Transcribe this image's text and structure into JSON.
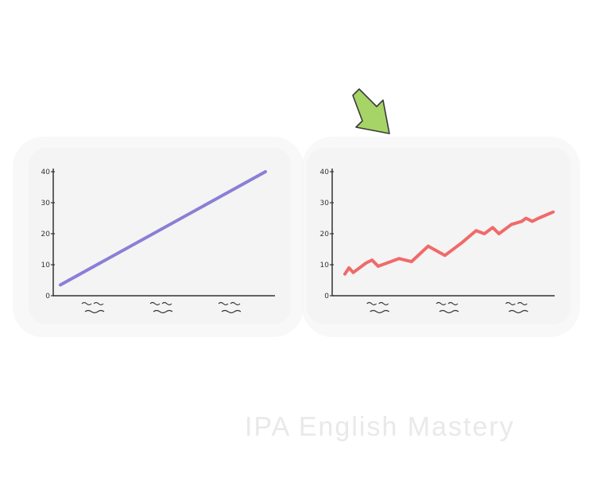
{
  "watermark": "IPA English Mastery",
  "colors": {
    "left_line": "#8a7fd6",
    "right_line": "#f06a6a",
    "arrow": "#a6d466",
    "axis": "#333333"
  },
  "icons": {
    "arrow": "down-right-arrow-icon"
  },
  "chart_data": [
    {
      "type": "line",
      "ylim": [
        0,
        40
      ],
      "yticks": [
        "40",
        "30",
        "20",
        "10",
        "0"
      ],
      "xlabels": [
        "",
        "",
        ""
      ],
      "grid": false,
      "series": [
        {
          "x": [
            0,
            100
          ],
          "y": [
            3.5,
            40
          ]
        }
      ]
    },
    {
      "type": "line",
      "ylim": [
        0,
        40
      ],
      "yticks": [
        "40",
        "30",
        "20",
        "10",
        "0"
      ],
      "xlabels": [
        "",
        "",
        ""
      ],
      "grid": false,
      "series": [
        {
          "x": [
            0,
            2,
            4,
            10,
            13,
            16,
            22,
            26,
            32,
            40,
            48,
            56,
            63,
            67,
            71,
            74,
            78,
            80,
            85,
            87,
            90,
            93,
            100
          ],
          "y": [
            7,
            9,
            7.5,
            10.5,
            11.5,
            9.5,
            11,
            12,
            11,
            16,
            13,
            17,
            21,
            20,
            22,
            20,
            22,
            23,
            24,
            25,
            24,
            25,
            27
          ]
        }
      ]
    }
  ]
}
